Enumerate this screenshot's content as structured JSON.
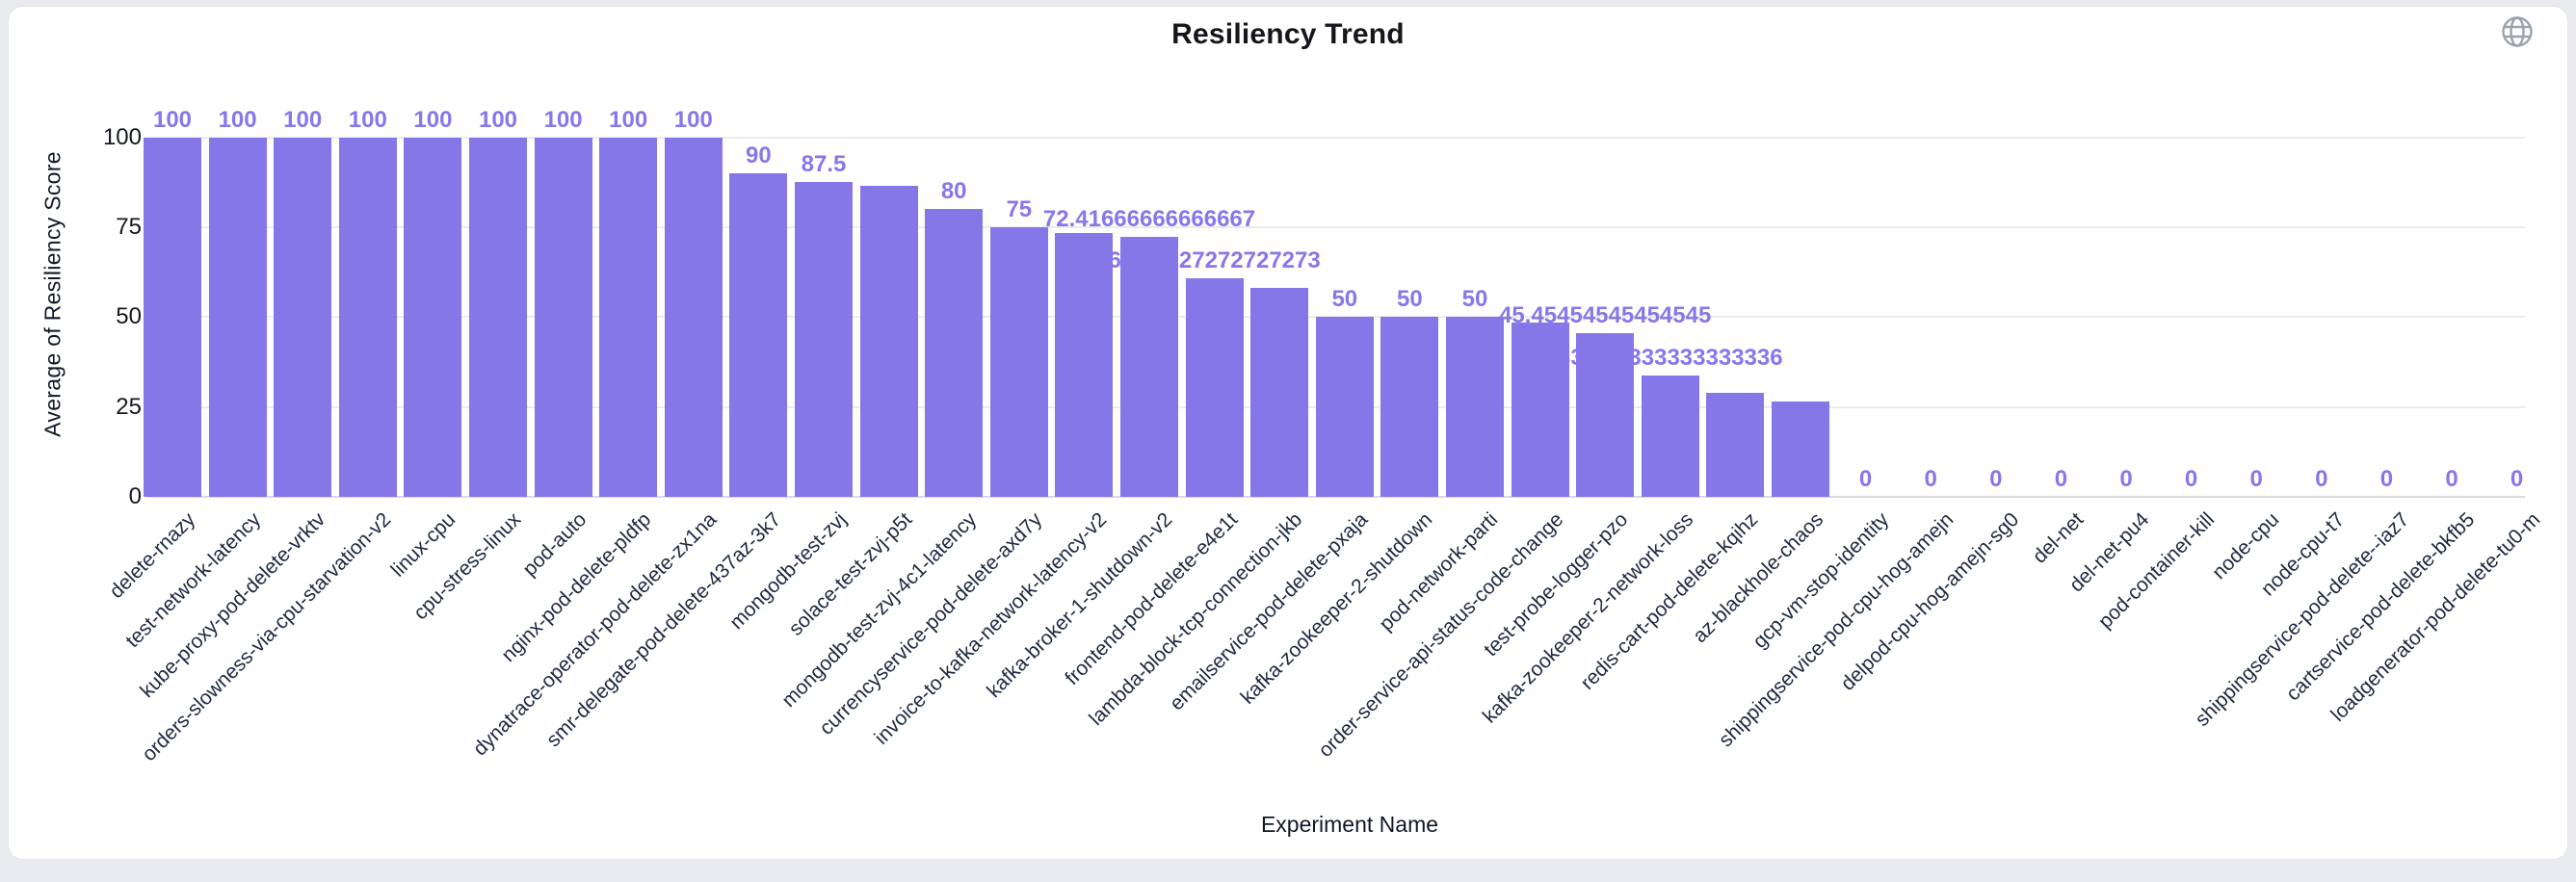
{
  "header": {
    "title": "Resiliency Trend",
    "globe_icon": "globe"
  },
  "chart_data": {
    "type": "bar",
    "title": "Resiliency Trend",
    "xlabel": "Experiment Name",
    "ylabel": "Average of Resiliency Score",
    "ylim": [
      0,
      100
    ],
    "yticks": [
      0,
      25,
      50,
      75,
      100
    ],
    "grid": true,
    "legend": "none",
    "bar_color": "#8577e8",
    "value_label_color": "#8678ea",
    "categories": [
      "delete-rnazy",
      "test-network-latency",
      "kube-proxy-pod-delete-vrktv",
      "orders-slowness-via-cpu-starvation-v2",
      "linux-cpu",
      "cpu-stress-linux",
      "pod-auto",
      "nginx-pod-delete-pldfp",
      "dynatrace-operator-pod-delete-zx1na",
      "smr-delegate-pod-delete-437az-3k7",
      "mongodb-test-zvj",
      "solace-test-zvj-p5t",
      "mongodb-test-zvj-4c1-latency",
      "currencyservice-pod-delete-axd7y",
      "invoice-to-kafka-network-latency-v2",
      "kafka-broker-1-shutdown-v2",
      "frontend-pod-delete-e4e1t",
      "lambda-block-tcp-connection-jkb",
      "emailservice-pod-delete-pxaja",
      "kafka-zookeeper-2-shutdown",
      "pod-network-parti",
      "order-service-api-status-code-change",
      "test-probe-logger-pzo",
      "kafka-zookeeper-2-network-loss",
      "redis-cart-pod-delete-kqihz",
      "az-blackhole-chaos",
      "gcp-vm-stop-identity",
      "shippingservice-pod-cpu-hog-amejn",
      "delpod-cpu-hog-amejn-sg0",
      "del-net",
      "del-net-pu4",
      "pod-container-kill",
      "node-cpu",
      "node-cpu-t7",
      "shippingservice-pod-delete--iaz7",
      "cartservice-pod-delete-bkfb5",
      "loadgenerator-pod-delete-tu0-m"
    ],
    "values": [
      100,
      100,
      100,
      100,
      100,
      100,
      100,
      100,
      100,
      90,
      87.5,
      86.4,
      80,
      75,
      73.3,
      72.41666666666667,
      60.72727272727273,
      58,
      50,
      50,
      50,
      48.6,
      45.45454545454545,
      33.833333333333336,
      29,
      26.4,
      0,
      0,
      0,
      0,
      0,
      0,
      0,
      0,
      0,
      0,
      0
    ],
    "bar_labels": [
      "100",
      "100",
      "100",
      "100",
      "100",
      "100",
      "100",
      "100",
      "100",
      "90",
      "87.5",
      null,
      "80",
      "75",
      null,
      "72.41666666666667",
      "60.72727272727273",
      null,
      "50",
      "50",
      "50",
      null,
      "45.45454545454545",
      "33.833333333333336",
      null,
      null,
      "0",
      "0",
      "0",
      "0",
      "0",
      "0",
      "0",
      "0",
      "0",
      "0",
      "0"
    ]
  }
}
